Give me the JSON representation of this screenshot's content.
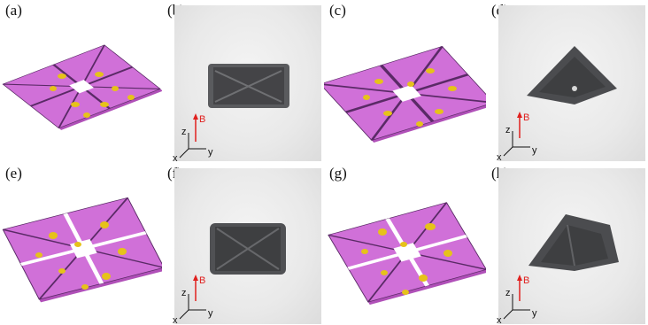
{
  "panels": [
    {
      "label": "(a)",
      "kind": "model"
    },
    {
      "label": "(b)",
      "kind": "photo"
    },
    {
      "label": "(c)",
      "kind": "model"
    },
    {
      "label": "(d)",
      "kind": "photo"
    },
    {
      "label": "(e)",
      "kind": "model"
    },
    {
      "label": "(f)",
      "kind": "photo"
    },
    {
      "label": "(g)",
      "kind": "model"
    },
    {
      "label": "(h)",
      "kind": "photo"
    }
  ],
  "axes": {
    "field": "B",
    "z": "z",
    "x": "x",
    "y": "y"
  },
  "colors": {
    "tile": "#d070d8",
    "tile_edge": "#5a2a66",
    "bump": "#e6c21a",
    "sample": "#3e3f41",
    "field_arrow": "#e0201e"
  }
}
